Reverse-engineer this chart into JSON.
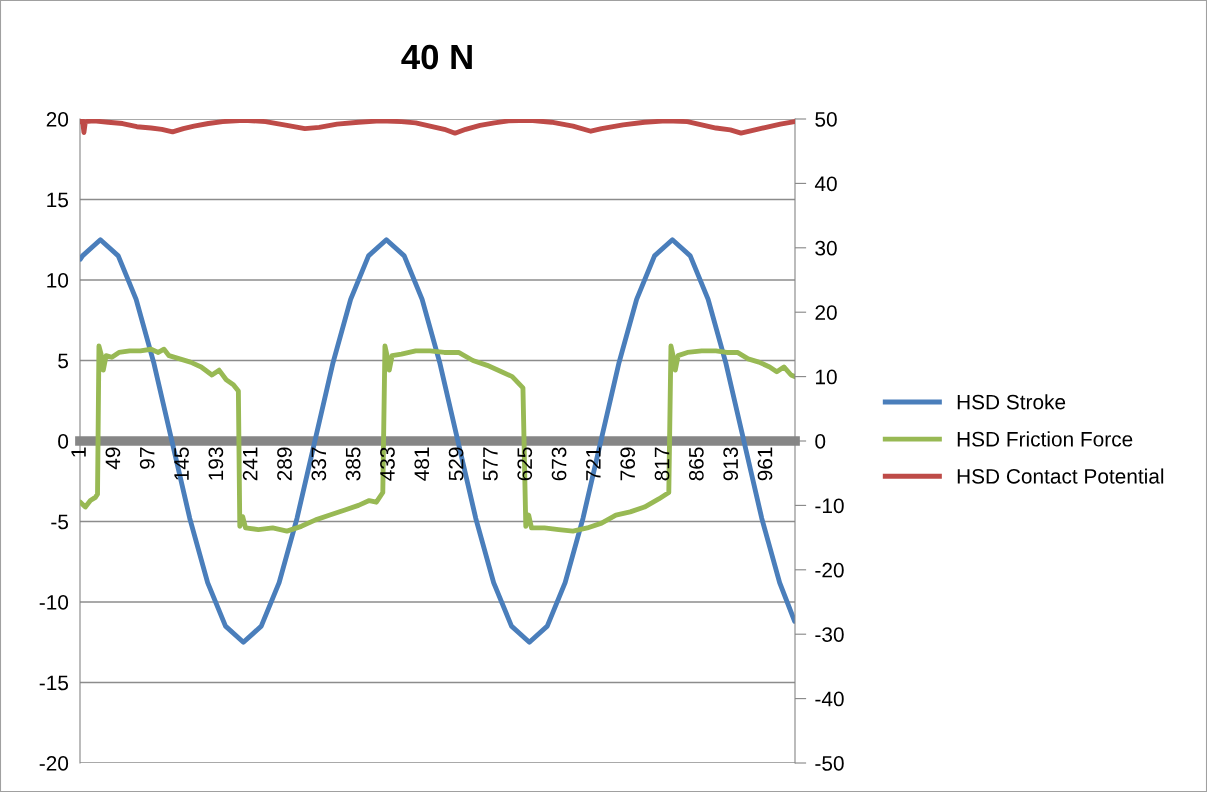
{
  "chart_data": {
    "type": "line",
    "title": "40 N",
    "xlim": [
      0.5,
      1000.5
    ],
    "xticks": [
      1,
      49,
      97,
      145,
      193,
      241,
      289,
      337,
      385,
      433,
      481,
      529,
      577,
      625,
      673,
      721,
      769,
      817,
      865,
      913,
      961
    ],
    "ylim": [
      -20,
      20
    ],
    "yticks": [
      -20,
      -15,
      -10,
      -5,
      0,
      5,
      10,
      15,
      20
    ],
    "y2lim": [
      -50,
      50
    ],
    "y2ticks": [
      -50,
      -40,
      -30,
      -20,
      -10,
      0,
      10,
      20,
      30,
      40,
      50
    ],
    "grid": "y",
    "legend": "right",
    "line_style": "solid",
    "marker": "none",
    "series": [
      {
        "name": "HSD Stroke",
        "color": "#4a7ebb",
        "x": [
          1,
          4,
          29,
          54,
          79,
          104,
          129,
          154,
          179,
          204,
          229,
          254,
          279,
          304,
          329,
          354,
          379,
          404,
          429,
          454,
          479,
          504,
          529,
          554,
          579,
          604,
          629,
          654,
          679,
          704,
          729,
          754,
          779,
          804,
          829,
          854,
          879,
          904,
          929,
          954,
          979,
          1000
        ],
        "values": [
          11.3,
          11.5,
          12.5,
          11.5,
          8.8,
          4.8,
          0,
          -4.8,
          -8.8,
          -11.5,
          -12.5,
          -11.5,
          -8.8,
          -4.8,
          0,
          4.8,
          8.8,
          11.5,
          12.5,
          11.5,
          8.8,
          4.8,
          0,
          -4.8,
          -8.8,
          -11.5,
          -12.5,
          -11.5,
          -8.8,
          -4.8,
          0,
          4.8,
          8.8,
          11.5,
          12.5,
          11.5,
          8.8,
          4.8,
          0,
          -4.8,
          -8.8,
          -11.2
        ]
      },
      {
        "name": "HSD Friction Force",
        "color": "#98b954",
        "x": [
          1,
          8,
          15,
          22,
          25,
          27,
          30,
          33,
          37,
          45,
          55,
          70,
          85,
          100,
          110,
          118,
          125,
          140,
          155,
          170,
          185,
          195,
          205,
          215,
          222,
          224,
          228,
          232,
          250,
          270,
          290,
          310,
          330,
          350,
          370,
          390,
          405,
          415,
          424,
          427,
          430,
          433,
          437,
          450,
          470,
          490,
          510,
          530,
          550,
          570,
          590,
          605,
          620,
          624,
          628,
          632,
          650,
          670,
          690,
          710,
          730,
          750,
          770,
          790,
          810,
          824,
          827,
          830,
          833,
          837,
          850,
          870,
          890,
          905,
          920,
          935,
          950,
          965,
          975,
          985,
          995,
          1000
        ],
        "values": [
          -3.8,
          -4.1,
          -3.7,
          -3.5,
          -3.3,
          5.9,
          5.4,
          4.4,
          5.3,
          5.2,
          5.5,
          5.6,
          5.6,
          5.7,
          5.5,
          5.7,
          5.3,
          5.1,
          4.9,
          4.6,
          4.1,
          4.4,
          3.8,
          3.5,
          3.1,
          -5.3,
          -4.7,
          -5.4,
          -5.5,
          -5.4,
          -5.6,
          -5.3,
          -4.9,
          -4.6,
          -4.3,
          -4.0,
          -3.7,
          -3.8,
          -3.2,
          5.9,
          5.3,
          4.4,
          5.3,
          5.4,
          5.6,
          5.6,
          5.5,
          5.5,
          5.0,
          4.7,
          4.3,
          4.0,
          3.3,
          -5.3,
          -4.6,
          -5.4,
          -5.4,
          -5.5,
          -5.6,
          -5.4,
          -5.1,
          -4.6,
          -4.4,
          -4.1,
          -3.6,
          -3.2,
          5.9,
          5.3,
          4.4,
          5.3,
          5.5,
          5.6,
          5.6,
          5.5,
          5.5,
          5.1,
          4.9,
          4.6,
          4.3,
          4.6,
          4.1,
          4.0
        ]
      },
      {
        "name": "HSD Contact Potential",
        "color": "#be4b48",
        "axis": "y2",
        "x": [
          1,
          4,
          6,
          8,
          20,
          40,
          60,
          80,
          100,
          115,
          130,
          145,
          160,
          180,
          200,
          230,
          260,
          290,
          315,
          335,
          360,
          390,
          420,
          450,
          470,
          490,
          510,
          525,
          540,
          560,
          580,
          600,
          630,
          660,
          690,
          715,
          730,
          760,
          790,
          820,
          850,
          870,
          890,
          910,
          925,
          940,
          960,
          980,
          1000
        ],
        "values": [
          49.6,
          49.8,
          47.9,
          49.6,
          49.7,
          49.5,
          49.3,
          48.8,
          48.6,
          48.4,
          48.0,
          48.5,
          48.9,
          49.3,
          49.6,
          49.8,
          49.6,
          49.0,
          48.5,
          48.7,
          49.2,
          49.5,
          49.7,
          49.6,
          49.4,
          48.9,
          48.4,
          47.8,
          48.4,
          49.0,
          49.4,
          49.7,
          49.8,
          49.5,
          48.9,
          48.1,
          48.5,
          49.1,
          49.5,
          49.7,
          49.6,
          49.1,
          48.6,
          48.3,
          47.8,
          48.2,
          48.7,
          49.2,
          49.6
        ]
      }
    ]
  }
}
